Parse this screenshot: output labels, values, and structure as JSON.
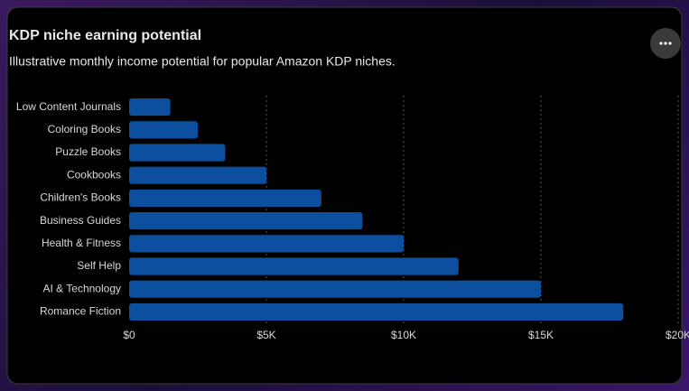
{
  "chart_data": {
    "type": "bar",
    "orientation": "horizontal",
    "title": "KDP niche earning potential",
    "subtitle": "Illustrative monthly income potential for popular Amazon KDP niches.",
    "categories": [
      "Low Content Journals",
      "Coloring Books",
      "Puzzle Books",
      "Cookbooks",
      "Children's Books",
      "Business Guides",
      "Health & Fitness",
      "Self Help",
      "AI & Technology",
      "Romance Fiction"
    ],
    "values": [
      1500,
      2500,
      3500,
      5000,
      7000,
      8500,
      10000,
      12000,
      15000,
      18000
    ],
    "color": "#0b4f9e",
    "xlim": [
      0,
      20000
    ],
    "xticks": [
      {
        "value": 0,
        "label": "$0"
      },
      {
        "value": 5000,
        "label": "$5K"
      },
      {
        "value": 10000,
        "label": "$10K"
      },
      {
        "value": 15000,
        "label": "$15K"
      },
      {
        "value": 20000,
        "label": "$20K"
      }
    ],
    "grid": true
  }
}
